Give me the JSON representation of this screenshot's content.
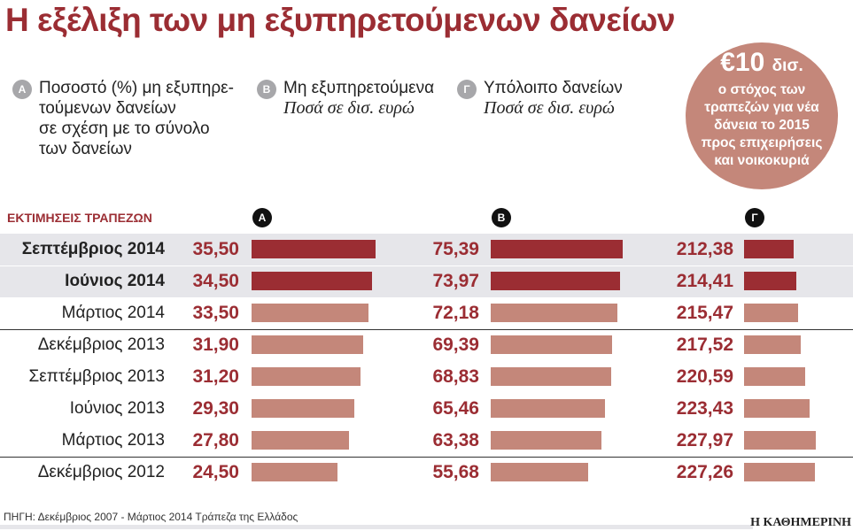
{
  "title": "Η εξέλιξη των μη εξυπηρετούμενων δανείων",
  "legend": [
    {
      "badge": "A",
      "text": "Ποσοστό (%) μη εξυπηρε-\nτούμενων δανείων\nσε σχέση με το σύνολο\nτων δανείων",
      "sub": ""
    },
    {
      "badge": "B",
      "text": "Μη εξυπηρετούμενα",
      "sub": "Ποσά σε δισ. ευρώ"
    },
    {
      "badge": "Γ",
      "text": "Υπόλοιπο δανείων",
      "sub": "Ποσά σε δισ. ευρώ"
    }
  ],
  "callout": {
    "amount": "€10",
    "unit": "δισ.",
    "text": "ο στόχος των\nτραπεζών για νέα\nδάνεια το 2015\nπρος επιχειρήσεις\nκαι νοικοκυριά"
  },
  "estimates_label": "ΕΚΤΙΜΗΣΕΙΣ ΤΡΑΠΕΖΩΝ",
  "source": "ΠΗΓΗ: Δεκέμβριος 2007 - Μάρτιος 2014 Τράπεζα της Ελλάδος",
  "logo": "Η ΚΑΘΗΜΕΡΙΝΗ",
  "colors": {
    "estimate": "#9b2d33",
    "actual": "#c4877a",
    "highlight_bg": "#e6e6ea"
  },
  "chart_data": {
    "type": "bar",
    "orientation": "horizontal",
    "categories": [
      "Σεπτέμβριος 2014",
      "Ιούνιος 2014",
      "Μάρτιος 2014",
      "Δεκέμβριος 2013",
      "Σεπτέμβριος 2013",
      "Ιούνιος 2013",
      "Μάρτιος 2013",
      "Δεκέμβριος 2012"
    ],
    "estimated": [
      true,
      true,
      false,
      false,
      false,
      false,
      false,
      false
    ],
    "series": [
      {
        "name": "A",
        "values": [
          35.5,
          34.5,
          33.5,
          31.9,
          31.2,
          29.3,
          27.8,
          24.5
        ],
        "labels": [
          "35,50",
          "34,50",
          "33,50",
          "31,90",
          "31,20",
          "29,30",
          "27,80",
          "24,50"
        ],
        "xlim": [
          0,
          35.5
        ]
      },
      {
        "name": "B",
        "values": [
          75.39,
          73.97,
          72.18,
          69.39,
          68.83,
          65.46,
          63.38,
          55.68
        ],
        "labels": [
          "75,39",
          "73,97",
          "72,18",
          "69,39",
          "68,83",
          "65,46",
          "63,38",
          "55,68"
        ],
        "xlim": [
          0,
          75.39
        ]
      },
      {
        "name": "Γ",
        "values": [
          212.38,
          214.41,
          215.47,
          217.52,
          220.59,
          223.43,
          227.97,
          227.26
        ],
        "labels": [
          "212,38",
          "214,41",
          "215,47",
          "217,52",
          "220,59",
          "223,43",
          "227,97",
          "227,26"
        ],
        "xlim": [
          177,
          227.97
        ]
      }
    ]
  }
}
